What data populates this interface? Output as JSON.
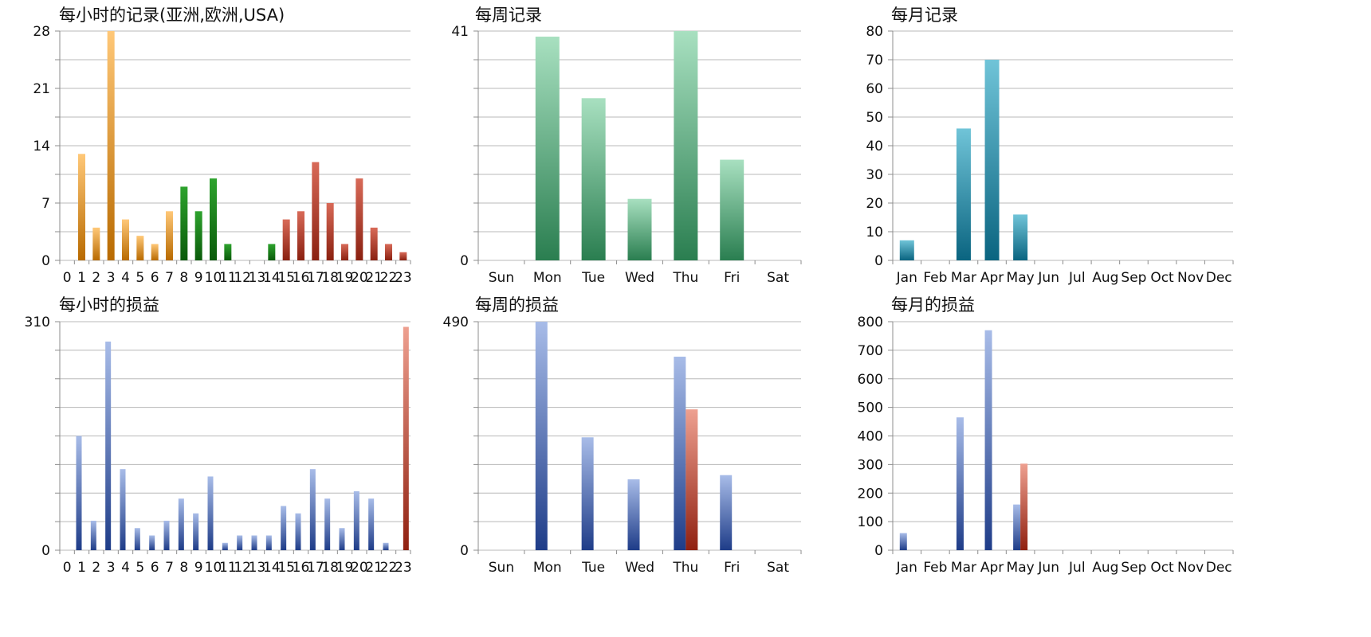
{
  "colors": {
    "grid": "#b8b8b8",
    "axis": "#8c8c8c",
    "orange_top": "#ffc878",
    "orange_bottom": "#b86a00",
    "green_top": "#2ea32e",
    "green_bottom": "#0a5a0a",
    "red_top": "#d86a58",
    "red_bottom": "#8a2010",
    "teal_green_top": "#a8e0c0",
    "teal_green_bottom": "#2a7e50",
    "teal_top": "#70c4d8",
    "teal_bottom": "#0a6480",
    "blue_top": "#a8bce8",
    "blue_bottom": "#1e3c88",
    "loss_top": "#eea090",
    "loss_bottom": "#902010"
  },
  "chart_data": [
    {
      "id": "hourly_records",
      "type": "bar",
      "title": "每小时的记录(亚洲,欧洲,USA)",
      "categories": [
        "0",
        "1",
        "2",
        "3",
        "4",
        "5",
        "6",
        "7",
        "8",
        "9",
        "10",
        "11",
        "12",
        "13",
        "14",
        "15",
        "16",
        "17",
        "18",
        "19",
        "20",
        "21",
        "22",
        "23"
      ],
      "ylim": [
        0,
        28
      ],
      "yticks": [
        0,
        7,
        14,
        21,
        28
      ],
      "gridlines": [
        0,
        3.5,
        7,
        10.5,
        14,
        17.5,
        21,
        24.5,
        28
      ],
      "series": [
        {
          "values": [
            0,
            13,
            4,
            28,
            5,
            3,
            2,
            6,
            9,
            6,
            10,
            2,
            0,
            0,
            2,
            5,
            6,
            12,
            7,
            2,
            10,
            4,
            2,
            1
          ],
          "colors": [
            "orange",
            "orange",
            "orange",
            "orange",
            "orange",
            "orange",
            "orange",
            "orange",
            "green",
            "green",
            "green",
            "green",
            "green",
            "green",
            "green",
            "red",
            "red",
            "red",
            "red",
            "red",
            "red",
            "red",
            "red",
            "red"
          ]
        }
      ]
    },
    {
      "id": "weekly_records",
      "type": "bar",
      "title": "每周记录",
      "categories": [
        "Sun",
        "Mon",
        "Tue",
        "Wed",
        "Thu",
        "Fri",
        "Sat"
      ],
      "ylim": [
        0,
        41
      ],
      "yticks": [
        0,
        41
      ],
      "gridlines": [
        0,
        5.125,
        10.25,
        15.375,
        20.5,
        25.625,
        30.75,
        35.875,
        41
      ],
      "series": [
        {
          "values": [
            0,
            40,
            29,
            11,
            41,
            18,
            0
          ],
          "colors": [
            "teal_green"
          ]
        }
      ]
    },
    {
      "id": "monthly_records",
      "type": "bar",
      "title": "每月记录",
      "categories": [
        "Jan",
        "Feb",
        "Mar",
        "Apr",
        "May",
        "Jun",
        "Jul",
        "Aug",
        "Sep",
        "Oct",
        "Nov",
        "Dec"
      ],
      "ylim": [
        0,
        80
      ],
      "yticks": [
        0,
        10,
        20,
        30,
        40,
        50,
        60,
        70,
        80
      ],
      "gridlines": [
        0,
        10,
        20,
        30,
        40,
        50,
        60,
        70,
        80
      ],
      "series": [
        {
          "values": [
            7,
            0,
            46,
            70,
            16,
            0,
            0,
            0,
            0,
            0,
            0,
            0
          ],
          "colors": [
            "teal"
          ]
        }
      ]
    },
    {
      "id": "hourly_pnl",
      "type": "bar",
      "title": "每小时的损益",
      "categories": [
        "0",
        "1",
        "2",
        "3",
        "4",
        "5",
        "6",
        "7",
        "8",
        "9",
        "10",
        "11",
        "12",
        "13",
        "14",
        "15",
        "16",
        "17",
        "18",
        "19",
        "20",
        "21",
        "22",
        "23"
      ],
      "ylim": [
        0,
        310
      ],
      "yticks": [
        0,
        310
      ],
      "gridlines": [
        0,
        38.75,
        77.5,
        116.25,
        155,
        193.75,
        232.5,
        271.25,
        310
      ],
      "series": [
        {
          "values": [
            0,
            155,
            40,
            283,
            110,
            30,
            20,
            40,
            70,
            50,
            100,
            10,
            20,
            20,
            20,
            60,
            50,
            110,
            70,
            30,
            80,
            70,
            10,
            0
          ],
          "colors": [
            "blue"
          ]
        },
        {
          "values": [
            0,
            0,
            0,
            0,
            0,
            0,
            0,
            0,
            0,
            0,
            0,
            0,
            0,
            0,
            0,
            0,
            0,
            0,
            0,
            0,
            0,
            0,
            0,
            303
          ],
          "colors": [
            "loss"
          ]
        }
      ]
    },
    {
      "id": "weekly_pnl",
      "type": "bar",
      "title": "每周的损益",
      "categories": [
        "Sun",
        "Mon",
        "Tue",
        "Wed",
        "Thu",
        "Fri",
        "Sat"
      ],
      "ylim": [
        0,
        490
      ],
      "yticks": [
        0,
        490
      ],
      "gridlines": [
        0,
        61.25,
        122.5,
        183.75,
        245,
        306.25,
        367.5,
        428.75,
        490
      ],
      "series": [
        {
          "values": [
            0,
            490,
            242,
            152,
            415,
            161,
            0
          ],
          "colors": [
            "blue"
          ]
        },
        {
          "values": [
            0,
            0,
            0,
            0,
            302,
            0,
            0
          ],
          "colors": [
            "loss"
          ]
        }
      ]
    },
    {
      "id": "monthly_pnl",
      "type": "bar",
      "title": "每月的损益",
      "categories": [
        "Jan",
        "Feb",
        "Mar",
        "Apr",
        "May",
        "Jun",
        "Jul",
        "Aug",
        "Sep",
        "Oct",
        "Nov",
        "Dec"
      ],
      "ylim": [
        0,
        800
      ],
      "yticks": [
        0,
        100,
        200,
        300,
        400,
        500,
        600,
        700,
        800
      ],
      "gridlines": [
        0,
        100,
        200,
        300,
        400,
        500,
        600,
        700,
        800
      ],
      "series": [
        {
          "values": [
            60,
            0,
            465,
            770,
            160,
            0,
            0,
            0,
            0,
            0,
            0,
            0
          ],
          "colors": [
            "blue"
          ]
        },
        {
          "values": [
            0,
            0,
            0,
            0,
            303,
            0,
            0,
            0,
            0,
            0,
            0,
            0
          ],
          "colors": [
            "loss"
          ]
        }
      ]
    }
  ]
}
